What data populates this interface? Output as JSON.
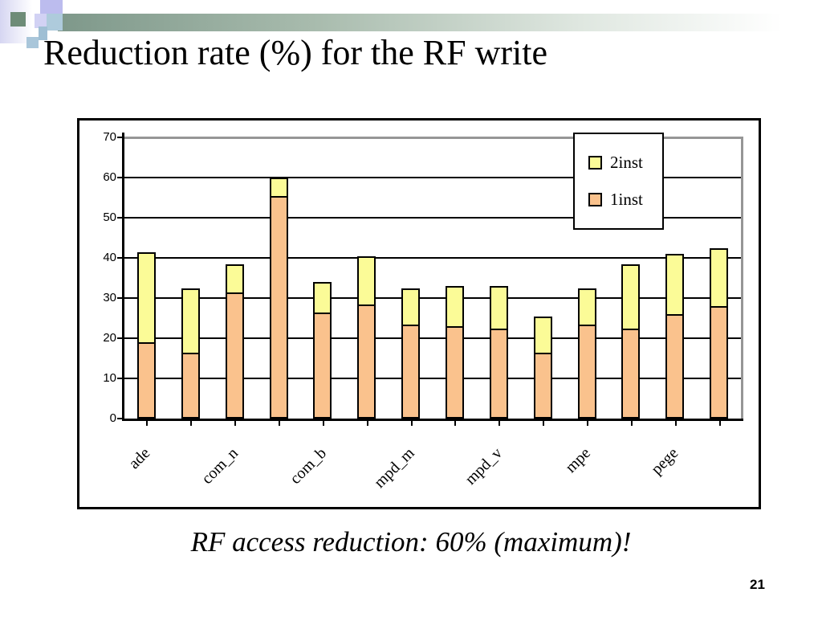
{
  "slide": {
    "title": "Reduction rate (%) for the RF write",
    "caption": "RF access reduction: 60% (maximum)!",
    "page_number": "21"
  },
  "chart_data": {
    "type": "bar",
    "stacked": true,
    "bars_per_category": 2,
    "categories": [
      "ade",
      "com_n",
      "com_b",
      "mpd_m",
      "mpd_v",
      "mpe",
      "pege"
    ],
    "series": [
      {
        "name": "1inst",
        "color": "#FAC28D",
        "values": [
          19,
          16.5,
          31.5,
          55.5,
          26.5,
          28.5,
          23.5,
          23,
          22.5,
          16.5,
          23.5,
          22.5,
          26,
          28
        ]
      },
      {
        "name": "2inst",
        "color": "#FBFB97",
        "values": [
          22.5,
          16,
          7,
          4.5,
          7.5,
          12,
          9,
          10,
          10.5,
          9,
          9,
          16,
          15,
          14.5
        ]
      }
    ],
    "stack_totals": [
      41.5,
      32.5,
      38.5,
      60,
      34,
      40.5,
      32.5,
      33,
      33,
      25.5,
      32.5,
      38.5,
      41,
      42.5
    ],
    "y_ticks": [
      0,
      10,
      20,
      30,
      40,
      50,
      60,
      70
    ],
    "ylim": [
      0,
      70
    ],
    "xlabel": "",
    "ylabel": "",
    "grid": true,
    "legend": {
      "position": "top-right",
      "entries": [
        "2inst",
        "1inst"
      ]
    }
  },
  "palette": {
    "caption_red": "#E8391A",
    "header_green": "#7E988A",
    "plot_border_gray": "#969696",
    "deco_lavender": "#D6D6F2",
    "deco_blue": "#AECBDC"
  }
}
